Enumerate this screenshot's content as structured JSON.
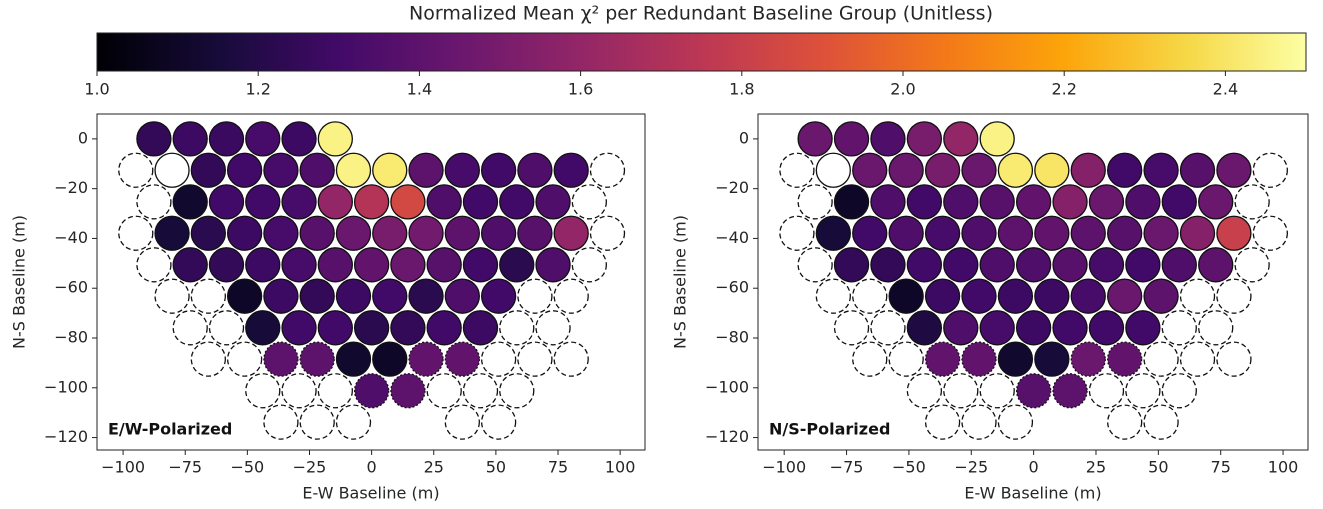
{
  "colorbar": {
    "label": "Normalized Mean χ² per Redundant Baseline Group (Unitless)",
    "colormap": "inferno",
    "lim": [
      1.0,
      2.5
    ],
    "ticks": [
      {
        "value": 1.0,
        "label": "1.0"
      },
      1.2,
      1.4,
      1.6,
      1.8,
      {
        "value": 2.0,
        "label": "2.0"
      },
      2.2,
      2.4
    ]
  },
  "chart_data": [
    {
      "type": "scatter",
      "annotation": "E/W-Polarized",
      "xlabel": "E-W Baseline (m)",
      "ylabel": "N-S Baseline (m)",
      "xlim": [
        -110.5,
        110
      ],
      "ylim": [
        -125,
        10
      ],
      "xticks": [
        {
          "value": -100,
          "label": "−100"
        },
        {
          "value": -75,
          "label": "−75"
        },
        {
          "value": -50,
          "label": "−50"
        },
        {
          "value": -25,
          "label": "−25"
        },
        0,
        25,
        50,
        75,
        100
      ],
      "yticks": [
        0,
        {
          "value": -20,
          "label": "−20"
        },
        {
          "value": -40,
          "label": "−40"
        },
        {
          "value": -60,
          "label": "−60"
        },
        {
          "value": -80,
          "label": "−80"
        },
        {
          "value": -100,
          "label": "−100"
        },
        {
          "value": -120,
          "label": "−120"
        }
      ],
      "x": [
        -87.6,
        -73,
        -58.4,
        -43.8,
        -29.2,
        -14.6,
        -94.9,
        -80.3,
        -65.7,
        -51.1,
        -36.5,
        -21.9,
        -7.3,
        7.3,
        21.9,
        36.5,
        51.1,
        65.7,
        80.3,
        94.9,
        -87.6,
        -73,
        -58.4,
        -43.8,
        -29.2,
        -14.6,
        0,
        14.6,
        29.2,
        43.8,
        58.4,
        73,
        87.6,
        -94.9,
        -80.3,
        -65.7,
        -51.1,
        -36.5,
        -21.9,
        -7.3,
        7.3,
        21.9,
        36.5,
        51.1,
        65.7,
        80.3,
        94.9,
        -87.6,
        -73,
        -58.4,
        -43.8,
        -29.2,
        -14.6,
        0,
        14.6,
        29.2,
        43.8,
        58.4,
        73,
        87.6,
        -80.3,
        -65.7,
        -51.1,
        -36.5,
        -21.9,
        -7.3,
        7.3,
        21.9,
        36.5,
        51.1,
        65.7,
        80.3,
        -73,
        -58.4,
        -43.8,
        -29.2,
        -14.6,
        0,
        14.6,
        29.2,
        43.8,
        58.4,
        73,
        -65.7,
        -51.1,
        -36.5,
        -21.9,
        -7.3,
        7.3,
        21.9,
        36.5,
        51.1,
        65.7,
        80.3,
        -43.8,
        -29.2,
        -14.6,
        0,
        14.6,
        29.2,
        43.8,
        58.4,
        -36.5,
        -21.9,
        -7.3,
        36.5,
        51.1
      ],
      "y": [
        0,
        0,
        0,
        0,
        0,
        0,
        -12.6,
        -12.6,
        -12.6,
        -12.6,
        -12.6,
        -12.6,
        -12.6,
        -12.6,
        -12.6,
        -12.6,
        -12.6,
        -12.6,
        -12.6,
        -12.6,
        -25.3,
        -25.3,
        -25.3,
        -25.3,
        -25.3,
        -25.3,
        -25.3,
        -25.3,
        -25.3,
        -25.3,
        -25.3,
        -25.3,
        -25.3,
        -37.9,
        -37.9,
        -37.9,
        -37.9,
        -37.9,
        -37.9,
        -37.9,
        -37.9,
        -37.9,
        -37.9,
        -37.9,
        -37.9,
        -37.9,
        -37.9,
        -50.6,
        -50.6,
        -50.6,
        -50.6,
        -50.6,
        -50.6,
        -50.6,
        -50.6,
        -50.6,
        -50.6,
        -50.6,
        -50.6,
        -50.6,
        -63.2,
        -63.2,
        -63.2,
        -63.2,
        -63.2,
        -63.2,
        -63.2,
        -63.2,
        -63.2,
        -63.2,
        -63.2,
        -63.2,
        -75.9,
        -75.9,
        -75.9,
        -75.9,
        -75.9,
        -75.9,
        -75.9,
        -75.9,
        -75.9,
        -75.9,
        -75.9,
        -88.5,
        -88.5,
        -88.5,
        -88.5,
        -88.5,
        -88.5,
        -88.5,
        -88.5,
        -88.5,
        -88.5,
        -88.5,
        -101.2,
        -101.2,
        -101.2,
        -101.2,
        -101.2,
        -101.2,
        -101.2,
        -101.2,
        -113.8,
        -113.8,
        -113.8,
        -113.8,
        -113.8
      ],
      "values": [
        1.25,
        1.28,
        1.27,
        1.32,
        1.28,
        2.45,
        null,
        null,
        1.25,
        1.3,
        1.32,
        1.35,
        2.45,
        2.42,
        1.4,
        1.32,
        1.3,
        1.35,
        1.3,
        null,
        null,
        1.12,
        1.3,
        1.3,
        1.32,
        1.6,
        1.72,
        1.85,
        1.35,
        1.3,
        1.3,
        1.35,
        null,
        null,
        1.15,
        1.22,
        1.28,
        1.32,
        1.38,
        1.45,
        1.5,
        1.48,
        1.4,
        1.35,
        1.38,
        1.6,
        null,
        null,
        1.25,
        1.25,
        1.28,
        1.32,
        1.38,
        1.42,
        1.45,
        1.38,
        1.3,
        1.22,
        1.35,
        null,
        null,
        null,
        1.1,
        1.28,
        1.25,
        1.28,
        1.3,
        1.22,
        1.35,
        1.3,
        null,
        null,
        null,
        null,
        1.15,
        1.3,
        1.3,
        1.22,
        1.25,
        1.3,
        1.28,
        null,
        null,
        null,
        null,
        1.4,
        1.4,
        1.12,
        1.1,
        1.42,
        1.42,
        null,
        null,
        null,
        null,
        null,
        null,
        1.35,
        1.4,
        null,
        null,
        null,
        null,
        null,
        null,
        null,
        null
      ],
      "edges": [
        "solid",
        "solid",
        "solid",
        "solid",
        "solid",
        "solid",
        "dashed",
        "solid",
        "solid",
        "solid",
        "solid",
        "solid",
        "solid",
        "solid",
        "solid",
        "solid",
        "solid",
        "solid",
        "solid",
        "dashed",
        "dashed",
        "solid",
        "solid",
        "solid",
        "solid",
        "solid",
        "solid",
        "solid",
        "solid",
        "solid",
        "solid",
        "solid",
        "dashed",
        "dashed",
        "solid",
        "solid",
        "solid",
        "solid",
        "solid",
        "solid",
        "solid",
        "solid",
        "solid",
        "solid",
        "solid",
        "solid",
        "dashed",
        "dashed",
        "solid",
        "solid",
        "solid",
        "solid",
        "solid",
        "solid",
        "solid",
        "solid",
        "solid",
        "solid",
        "solid",
        "dashed",
        "dashed",
        "dashed",
        "solid",
        "solid",
        "solid",
        "solid",
        "solid",
        "solid",
        "solid",
        "solid",
        "dashed",
        "dashed",
        "dashed",
        "dashed",
        "solid",
        "solid",
        "solid",
        "solid",
        "solid",
        "solid",
        "solid",
        "dashed",
        "dashed",
        "dashed",
        "dashed",
        "dotted",
        "dotted",
        "solid",
        "solid",
        "dotted",
        "dotted",
        "dashed",
        "dashed",
        "dashed",
        "dashed",
        "dashed",
        "dashed",
        "dotted",
        "dotted",
        "dashed",
        "dashed",
        "dashed",
        "dashed",
        "dashed",
        "dashed",
        "dashed",
        "dashed"
      ]
    },
    {
      "type": "scatter",
      "annotation": "N/S-Polarized",
      "xlabel": "E-W Baseline (m)",
      "ylabel": "N-S Baseline (m)",
      "xlim": [
        -110.5,
        110
      ],
      "ylim": [
        -125,
        10
      ],
      "xticks": [
        {
          "value": -100,
          "label": "−100"
        },
        {
          "value": -75,
          "label": "−75"
        },
        {
          "value": -50,
          "label": "−50"
        },
        {
          "value": -25,
          "label": "−25"
        },
        0,
        25,
        50,
        75,
        100
      ],
      "yticks": [
        0,
        {
          "value": -20,
          "label": "−20"
        },
        {
          "value": -40,
          "label": "−40"
        },
        {
          "value": -60,
          "label": "−60"
        },
        {
          "value": -80,
          "label": "−80"
        },
        {
          "value": -100,
          "label": "−100"
        },
        {
          "value": -120,
          "label": "−120"
        }
      ],
      "x": [
        -87.6,
        -73,
        -58.4,
        -43.8,
        -29.2,
        -14.6,
        -94.9,
        -80.3,
        -65.7,
        -51.1,
        -36.5,
        -21.9,
        -7.3,
        7.3,
        21.9,
        36.5,
        51.1,
        65.7,
        80.3,
        94.9,
        -87.6,
        -73,
        -58.4,
        -43.8,
        -29.2,
        -14.6,
        0,
        14.6,
        29.2,
        43.8,
        58.4,
        73,
        87.6,
        -94.9,
        -80.3,
        -65.7,
        -51.1,
        -36.5,
        -21.9,
        -7.3,
        7.3,
        21.9,
        36.5,
        51.1,
        65.7,
        80.3,
        94.9,
        -87.6,
        -73,
        -58.4,
        -43.8,
        -29.2,
        -14.6,
        0,
        14.6,
        29.2,
        43.8,
        58.4,
        73,
        87.6,
        -80.3,
        -65.7,
        -51.1,
        -36.5,
        -21.9,
        -7.3,
        7.3,
        21.9,
        36.5,
        51.1,
        65.7,
        80.3,
        -73,
        -58.4,
        -43.8,
        -29.2,
        -14.6,
        0,
        14.6,
        29.2,
        43.8,
        58.4,
        73,
        -65.7,
        -51.1,
        -36.5,
        -21.9,
        -7.3,
        7.3,
        21.9,
        36.5,
        51.1,
        65.7,
        80.3,
        -43.8,
        -29.2,
        -14.6,
        0,
        14.6,
        29.2,
        43.8,
        58.4,
        -36.5,
        -21.9,
        -7.3,
        36.5,
        51.1
      ],
      "y": [
        0,
        0,
        0,
        0,
        0,
        0,
        -12.6,
        -12.6,
        -12.6,
        -12.6,
        -12.6,
        -12.6,
        -12.6,
        -12.6,
        -12.6,
        -12.6,
        -12.6,
        -12.6,
        -12.6,
        -12.6,
        -25.3,
        -25.3,
        -25.3,
        -25.3,
        -25.3,
        -25.3,
        -25.3,
        -25.3,
        -25.3,
        -25.3,
        -25.3,
        -25.3,
        -25.3,
        -37.9,
        -37.9,
        -37.9,
        -37.9,
        -37.9,
        -37.9,
        -37.9,
        -37.9,
        -37.9,
        -37.9,
        -37.9,
        -37.9,
        -37.9,
        -37.9,
        -50.6,
        -50.6,
        -50.6,
        -50.6,
        -50.6,
        -50.6,
        -50.6,
        -50.6,
        -50.6,
        -50.6,
        -50.6,
        -50.6,
        -50.6,
        -63.2,
        -63.2,
        -63.2,
        -63.2,
        -63.2,
        -63.2,
        -63.2,
        -63.2,
        -63.2,
        -63.2,
        -63.2,
        -63.2,
        -75.9,
        -75.9,
        -75.9,
        -75.9,
        -75.9,
        -75.9,
        -75.9,
        -75.9,
        -75.9,
        -75.9,
        -75.9,
        -88.5,
        -88.5,
        -88.5,
        -88.5,
        -88.5,
        -88.5,
        -88.5,
        -88.5,
        -88.5,
        -88.5,
        -88.5,
        -101.2,
        -101.2,
        -101.2,
        -101.2,
        -101.2,
        -101.2,
        -101.2,
        -101.2,
        -113.8,
        -113.8,
        -113.8,
        -113.8,
        -113.8
      ],
      "values": [
        1.45,
        1.42,
        1.35,
        1.5,
        1.6,
        2.45,
        null,
        null,
        1.45,
        1.45,
        1.5,
        1.45,
        2.42,
        2.4,
        1.55,
        1.3,
        1.32,
        1.38,
        1.45,
        null,
        null,
        1.1,
        1.35,
        1.3,
        1.35,
        1.38,
        1.42,
        1.55,
        1.45,
        1.35,
        1.3,
        1.45,
        null,
        null,
        1.15,
        1.3,
        1.35,
        1.32,
        1.35,
        1.4,
        1.42,
        1.4,
        1.38,
        1.45,
        1.55,
        1.8,
        null,
        null,
        1.25,
        1.25,
        1.3,
        1.3,
        1.35,
        1.35,
        1.38,
        1.32,
        1.3,
        1.35,
        1.4,
        null,
        null,
        null,
        1.1,
        1.28,
        1.3,
        1.28,
        1.28,
        1.32,
        1.45,
        1.4,
        null,
        null,
        null,
        null,
        1.18,
        1.35,
        1.32,
        1.28,
        1.3,
        1.3,
        1.3,
        null,
        null,
        null,
        null,
        1.42,
        1.42,
        1.12,
        1.15,
        1.45,
        1.42,
        null,
        null,
        null,
        null,
        null,
        null,
        1.38,
        1.4,
        null,
        null,
        null,
        null,
        null,
        null,
        null,
        null
      ],
      "edges": [
        "solid",
        "solid",
        "solid",
        "solid",
        "solid",
        "solid",
        "dashed",
        "solid",
        "solid",
        "solid",
        "solid",
        "solid",
        "solid",
        "solid",
        "solid",
        "solid",
        "solid",
        "solid",
        "solid",
        "dashed",
        "dashed",
        "solid",
        "solid",
        "solid",
        "solid",
        "solid",
        "solid",
        "solid",
        "solid",
        "solid",
        "solid",
        "solid",
        "dashed",
        "dashed",
        "solid",
        "solid",
        "solid",
        "solid",
        "solid",
        "solid",
        "solid",
        "solid",
        "solid",
        "solid",
        "solid",
        "solid",
        "dashed",
        "dashed",
        "solid",
        "solid",
        "solid",
        "solid",
        "solid",
        "solid",
        "solid",
        "solid",
        "solid",
        "solid",
        "solid",
        "dashed",
        "dashed",
        "dashed",
        "solid",
        "solid",
        "solid",
        "solid",
        "solid",
        "solid",
        "solid",
        "solid",
        "dashed",
        "dashed",
        "dashed",
        "dashed",
        "solid",
        "solid",
        "solid",
        "solid",
        "solid",
        "solid",
        "solid",
        "dashed",
        "dashed",
        "dashed",
        "dashed",
        "dotted",
        "dotted",
        "solid",
        "solid",
        "dotted",
        "dotted",
        "dashed",
        "dashed",
        "dashed",
        "dashed",
        "dashed",
        "dashed",
        "dotted",
        "dotted",
        "dashed",
        "dashed",
        "dashed",
        "dashed",
        "dashed",
        "dashed",
        "dashed",
        "dashed"
      ]
    }
  ]
}
